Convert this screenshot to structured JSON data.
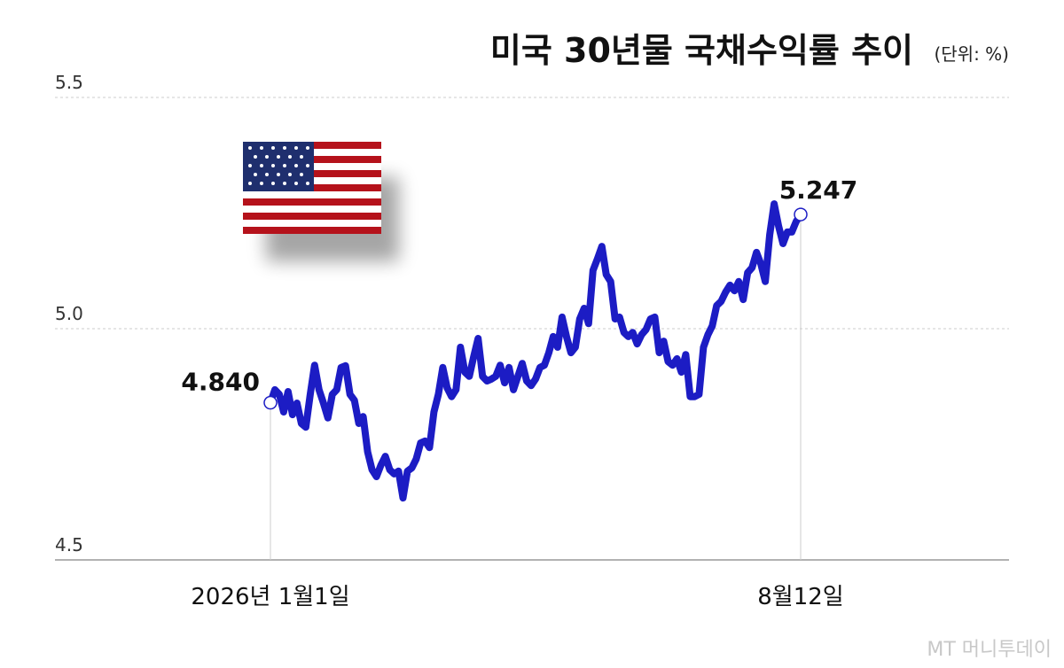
{
  "chart_data": {
    "type": "line",
    "title": "미국 30년물 국채수익률 추이",
    "subtitle": "(단위: %)",
    "source": "MT 머니투데이",
    "color": "#1c1cc4",
    "ylim": [
      4.5,
      5.5
    ],
    "yticks": [
      4.5,
      {
        "value": 5,
        "label": "5.0"
      },
      5.5
    ],
    "grid": true,
    "categories": [
      "2026년 1월1일",
      null,
      null,
      null,
      null,
      null,
      null,
      null,
      null,
      null,
      null,
      null,
      null,
      null,
      null,
      null,
      null,
      null,
      null,
      null,
      null,
      null,
      null,
      null,
      null,
      null,
      null,
      null,
      null,
      null,
      null,
      null,
      null,
      null,
      null,
      null,
      null,
      null,
      null,
      null,
      null,
      null,
      null,
      null,
      null,
      null,
      null,
      null,
      null,
      null,
      null,
      null,
      null,
      null,
      null,
      null,
      null,
      null,
      null,
      null,
      null,
      null,
      null,
      null,
      null,
      null,
      null,
      null,
      null,
      null,
      null,
      null,
      null,
      null,
      null,
      null,
      null,
      null,
      null,
      null,
      null,
      null,
      null,
      null,
      null,
      null,
      null,
      null,
      null,
      null,
      null,
      null,
      null,
      null,
      null,
      null,
      null,
      null,
      null,
      null,
      null,
      null,
      null,
      null,
      null,
      null,
      null,
      null,
      null,
      null,
      null,
      null,
      null,
      null,
      null,
      null,
      null,
      null,
      null,
      null,
      "8월12일"
    ],
    "values": [
      4.84,
      4.868,
      4.858,
      4.82,
      4.864,
      4.814,
      4.839,
      4.795,
      4.787,
      4.858,
      4.921,
      4.868,
      4.839,
      4.807,
      4.858,
      4.868,
      4.916,
      4.92,
      4.858,
      4.845,
      4.795,
      4.81,
      4.734,
      4.695,
      4.68,
      4.705,
      4.724,
      4.695,
      4.686,
      4.692,
      4.634,
      4.692,
      4.699,
      4.718,
      4.753,
      4.757,
      4.743,
      4.82,
      4.858,
      4.916,
      4.872,
      4.853,
      4.868,
      4.96,
      4.906,
      4.897,
      4.939,
      4.979,
      4.897,
      4.887,
      4.891,
      4.897,
      4.921,
      4.883,
      4.916,
      4.868,
      4.897,
      4.925,
      4.887,
      4.877,
      4.891,
      4.916,
      4.921,
      4.948,
      4.983,
      4.96,
      5.025,
      4.983,
      4.948,
      4.96,
      5.021,
      5.044,
      5.011,
      5.126,
      5.151,
      5.178,
      5.117,
      5.102,
      5.021,
      5.025,
      4.992,
      4.983,
      4.992,
      4.967,
      4.987,
      4.998,
      5.021,
      5.025,
      4.948,
      4.973,
      4.929,
      4.921,
      4.935,
      4.906,
      4.944,
      4.853,
      4.853,
      4.858,
      4.96,
      4.987,
      5.006,
      5.05,
      5.059,
      5.079,
      5.094,
      5.082,
      5.102,
      5.063,
      5.121,
      5.132,
      5.165,
      5.14,
      5.102,
      5.203,
      5.27,
      5.222,
      5.184,
      5.209,
      5.209,
      5.232,
      5.247
    ],
    "value_labels": [
      "4.840",
      null,
      null,
      null,
      null,
      null,
      null,
      null,
      null,
      null,
      null,
      null,
      null,
      null,
      null,
      null,
      null,
      null,
      null,
      null,
      null,
      null,
      null,
      null,
      null,
      null,
      null,
      null,
      null,
      null,
      null,
      null,
      null,
      null,
      null,
      null,
      null,
      null,
      null,
      null,
      null,
      null,
      null,
      null,
      null,
      null,
      null,
      null,
      null,
      null,
      null,
      null,
      null,
      null,
      null,
      null,
      null,
      null,
      null,
      null,
      null,
      null,
      null,
      null,
      null,
      null,
      null,
      null,
      null,
      null,
      null,
      null,
      null,
      null,
      null,
      null,
      null,
      null,
      null,
      null,
      null,
      null,
      null,
      null,
      null,
      null,
      null,
      null,
      null,
      null,
      null,
      null,
      null,
      null,
      null,
      null,
      null,
      null,
      null,
      null,
      null,
      null,
      null,
      null,
      null,
      null,
      null,
      null,
      null,
      null,
      null,
      null,
      null,
      null,
      null,
      null,
      null,
      null,
      null,
      null,
      "5.247"
    ]
  }
}
